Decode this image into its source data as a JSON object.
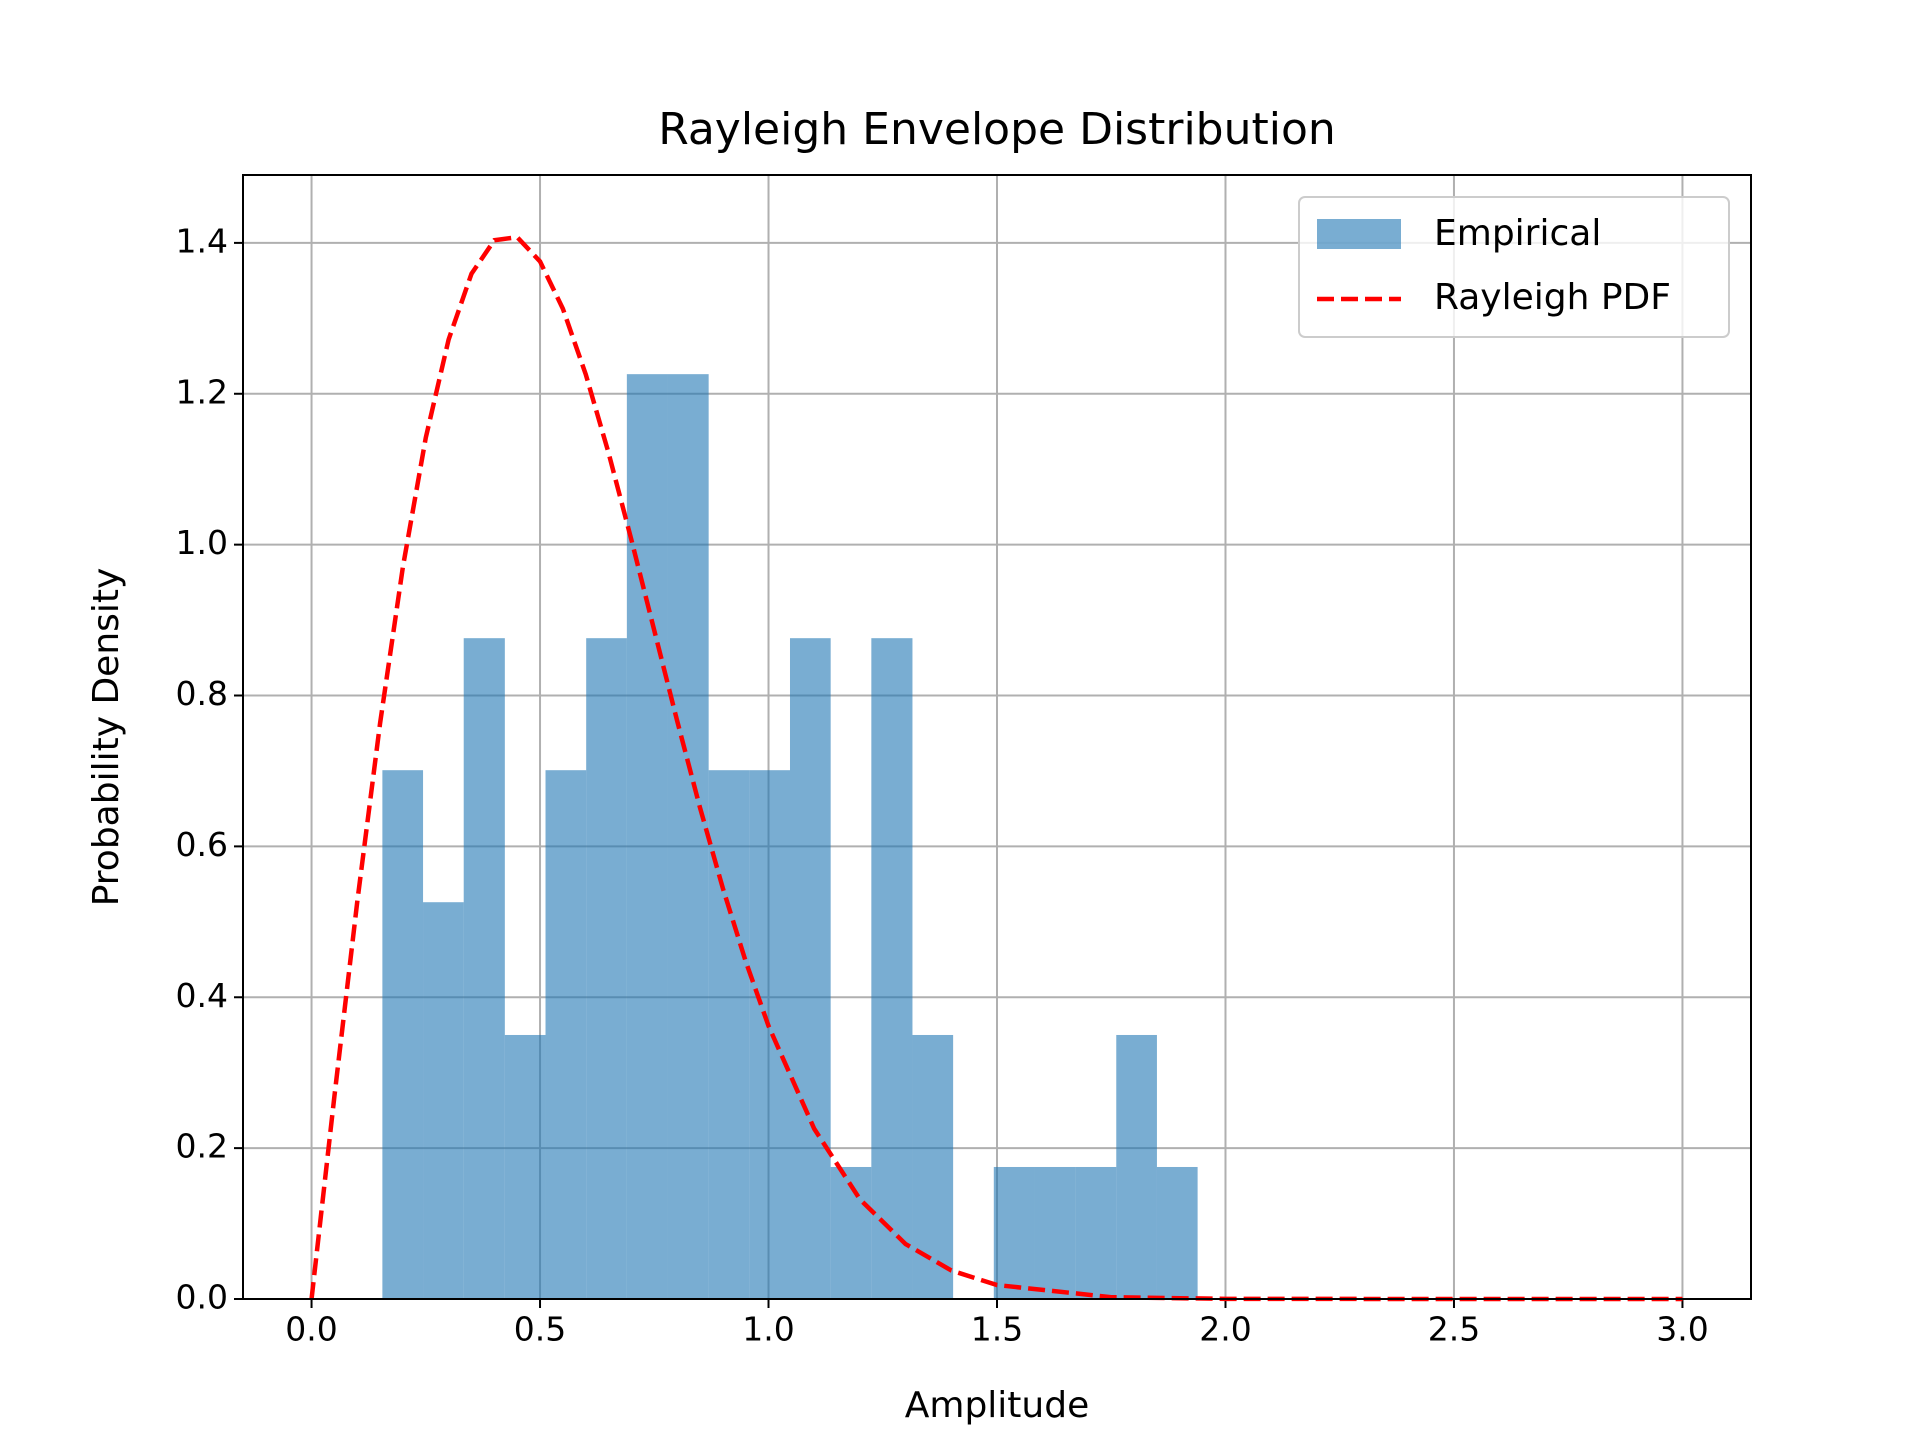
{
  "chart_data": {
    "type": "histogram",
    "title": "Rayleigh Envelope Distribution",
    "x_label": "Amplitude",
    "y_label": "Probability Density",
    "name": "Empirical",
    "color": "#1f77b4",
    "bins": [
      0.155,
      0.244,
      0.333,
      0.423,
      0.512,
      0.601,
      0.69,
      0.779,
      0.869,
      0.958,
      1.047,
      1.136,
      1.225,
      1.315,
      1.404,
      1.493,
      1.582,
      1.671,
      1.761,
      1.85,
      1.939
    ],
    "values": [
      0.701,
      0.526,
      0.876,
      0.35,
      0.701,
      0.876,
      1.226,
      1.226,
      0.701,
      0.701,
      0.876,
      0.175,
      0.876,
      0.35,
      0,
      0.175,
      0.175,
      0.175,
      0.35,
      0.175
    ],
    "line": {
      "name": "Rayleigh PDF",
      "color": "#ff0000",
      "style": "dashed",
      "x": [
        0,
        0.05,
        0.1,
        0.15,
        0.2,
        0.25,
        0.3,
        0.35,
        0.4,
        0.45,
        0.5,
        0.55,
        0.6,
        0.65,
        0.7,
        0.75,
        0.8,
        0.85,
        0.9,
        0.95,
        1.0,
        1.1,
        1.2,
        1.3,
        1.4,
        1.5,
        1.75,
        2.0,
        2.5,
        3.0
      ],
      "values": [
        0,
        0.2686,
        0.5264,
        0.7633,
        0.9708,
        1.1418,
        1.272,
        1.3591,
        1.4035,
        1.4076,
        1.3754,
        1.3127,
        1.2258,
        1.1215,
        1.0063,
        0.8862,
        0.7666,
        0.6515,
        0.5446,
        0.4477,
        0.362,
        0.2257,
        0.1322,
        0.0728,
        0.0378,
        0.0185,
        0.0024,
        0.0002,
        0,
        0
      ]
    },
    "xlim": [
      -0.15,
      3.15
    ],
    "ylim": [
      0,
      1.49
    ],
    "xticks": [
      {
        "value": 0,
        "label": "0.0"
      },
      {
        "value": 0.5,
        "label": "0.5"
      },
      {
        "value": 1,
        "label": "1.0"
      },
      {
        "value": 1.5,
        "label": "1.5"
      },
      {
        "value": 2,
        "label": "2.0"
      },
      {
        "value": 2.5,
        "label": "2.5"
      },
      {
        "value": 3,
        "label": "3.0"
      }
    ],
    "yticks": [
      {
        "value": 0,
        "label": "0.0"
      },
      {
        "value": 0.2,
        "label": "0.2"
      },
      {
        "value": 0.4,
        "label": "0.4"
      },
      {
        "value": 0.6,
        "label": "0.6"
      },
      {
        "value": 0.8,
        "label": "0.8"
      },
      {
        "value": 1.0,
        "label": "1.0"
      },
      {
        "value": 1.2,
        "label": "1.2"
      },
      {
        "value": 1.4,
        "label": "1.4"
      }
    ],
    "grid": true,
    "legend": "upper right"
  }
}
